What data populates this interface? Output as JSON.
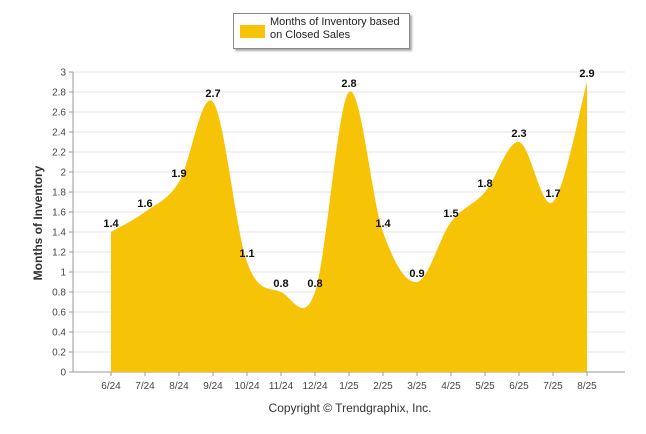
{
  "chart_data": {
    "type": "area",
    "title": "",
    "xlabel": "",
    "ylabel": "Months of Inventory",
    "categories": [
      "6/24",
      "7/24",
      "8/24",
      "9/24",
      "10/24",
      "11/24",
      "12/24",
      "1/25",
      "2/25",
      "3/25",
      "4/25",
      "5/25",
      "6/25",
      "7/25",
      "8/25"
    ],
    "series": [
      {
        "name": "Months of Inventory based on Closed Sales",
        "values": [
          1.4,
          1.6,
          1.9,
          2.7,
          1.1,
          0.8,
          0.8,
          2.8,
          1.4,
          0.9,
          1.5,
          1.8,
          2.3,
          1.7,
          2.9
        ],
        "color": "#F7C307"
      }
    ],
    "ylim": [
      0,
      3
    ],
    "yticks": [
      "0",
      "0.2",
      "0.4",
      "0.6",
      "0.8",
      "1",
      "1.2",
      "1.4",
      "1.6",
      "1.8",
      "2",
      "2.2",
      "2.4",
      "2.6",
      "2.8",
      "3"
    ],
    "grid": true,
    "legend_position": "top-center"
  },
  "footer": {
    "copyright": "Copyright © Trendgraphix, Inc."
  }
}
